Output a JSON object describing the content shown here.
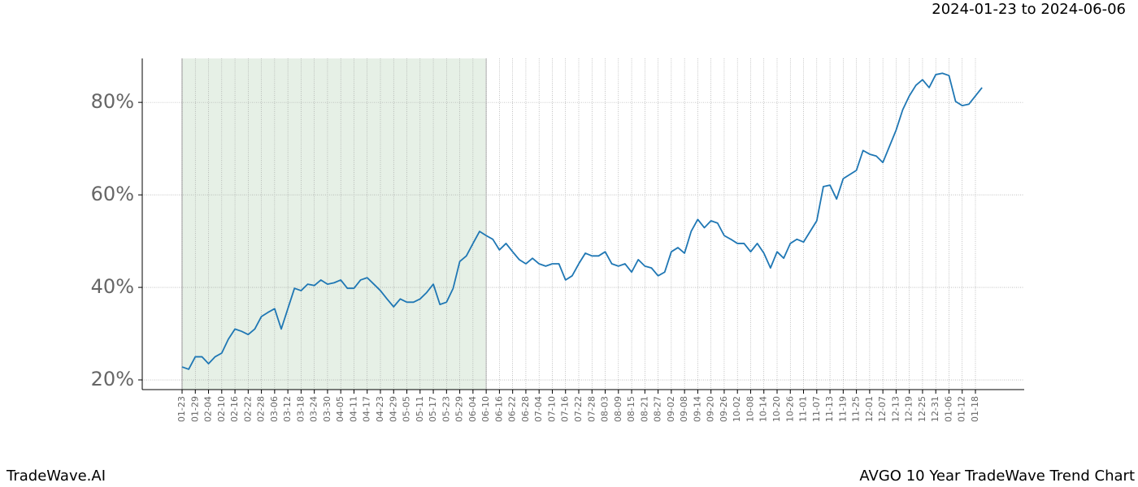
{
  "chart_data": {
    "type": "line",
    "title": "AVGO 10 Year TradeWave Trend Chart",
    "subtitle": "2024-01-23 to 2024-06-06",
    "source": "TradeWave.AI",
    "color": "#1f77b4",
    "grid": true,
    "ylim": [
      17.9,
      89.5
    ],
    "yticks": [
      {
        "value": 20,
        "label": "20%"
      },
      {
        "value": 40,
        "label": "40%"
      },
      {
        "value": 60,
        "label": "60%"
      },
      {
        "value": 80,
        "label": "80%"
      }
    ],
    "categories": [
      "01-23",
      null,
      "01-29",
      null,
      "02-04",
      null,
      "02-10",
      null,
      "02-16",
      null,
      "02-22",
      null,
      "02-28",
      null,
      "03-06",
      null,
      "03-12",
      null,
      "03-18",
      null,
      "03-24",
      null,
      "03-30",
      null,
      "04-05",
      null,
      "04-11",
      null,
      "04-17",
      null,
      "04-23",
      null,
      "04-29",
      null,
      "05-05",
      null,
      "05-11",
      null,
      "05-17",
      null,
      "05-23",
      null,
      "05-29",
      null,
      "06-04",
      null,
      "06-10",
      null,
      "06-16",
      null,
      "06-22",
      null,
      "06-28",
      null,
      "07-04",
      null,
      "07-10",
      null,
      "07-16",
      null,
      "07-22",
      null,
      "07-28",
      null,
      "08-03",
      null,
      "08-09",
      null,
      "08-15",
      null,
      "08-21",
      null,
      "08-27",
      null,
      "09-02",
      null,
      "09-08",
      null,
      "09-14",
      null,
      "09-20",
      null,
      "09-26",
      null,
      "10-02",
      null,
      "10-08",
      null,
      "10-14",
      null,
      "10-20",
      null,
      "10-26",
      null,
      "11-01",
      null,
      "11-07",
      null,
      "11-13",
      null,
      "11-19",
      null,
      "11-25",
      null,
      "12-01",
      null,
      "12-07",
      null,
      "12-13",
      null,
      "12-19",
      null,
      "12-25",
      null,
      "12-31",
      null,
      "01-06",
      null,
      "01-12",
      null,
      "01-18",
      null
    ],
    "values": [
      22.8,
      22.3,
      25,
      25,
      23.5,
      25,
      25.8,
      28.8,
      31,
      30.5,
      29.8,
      31,
      33.7,
      34.6,
      35.4,
      31,
      35.4,
      39.8,
      39.3,
      40.7,
      40.4,
      41.6,
      40.7,
      41,
      41.6,
      39.8,
      39.8,
      41.6,
      42.1,
      40.7,
      39.3,
      37.5,
      35.8,
      37.5,
      36.8,
      36.8,
      37.5,
      38.9,
      40.7,
      36.3,
      36.8,
      39.8,
      45.6,
      46.8,
      49.5,
      52.1,
      51.2,
      50.4,
      48.1,
      49.5,
      47.7,
      46,
      45.1,
      46.3,
      45.1,
      44.6,
      45.1,
      45.1,
      41.6,
      42.5,
      45.1,
      47.4,
      46.8,
      46.8,
      47.7,
      45.1,
      44.6,
      45.1,
      43.3,
      46,
      44.6,
      44.2,
      42.5,
      43.3,
      47.7,
      48.6,
      47.4,
      52.1,
      54.7,
      52.9,
      54.4,
      53.9,
      51.2,
      50.4,
      49.5,
      49.5,
      47.7,
      49.5,
      47.4,
      44.2,
      47.7,
      46.3,
      49.5,
      50.4,
      49.8,
      52.1,
      54.4,
      61.8,
      62.1,
      59.1,
      63.5,
      64.4,
      65.3,
      69.6,
      68.8,
      68.4,
      67,
      70.5,
      74,
      78.4,
      81.4,
      83.7,
      84.9,
      83.2,
      86,
      86.3,
      85.8,
      80.2,
      79.3,
      79.6,
      81.4,
      83.2
    ]
  }
}
